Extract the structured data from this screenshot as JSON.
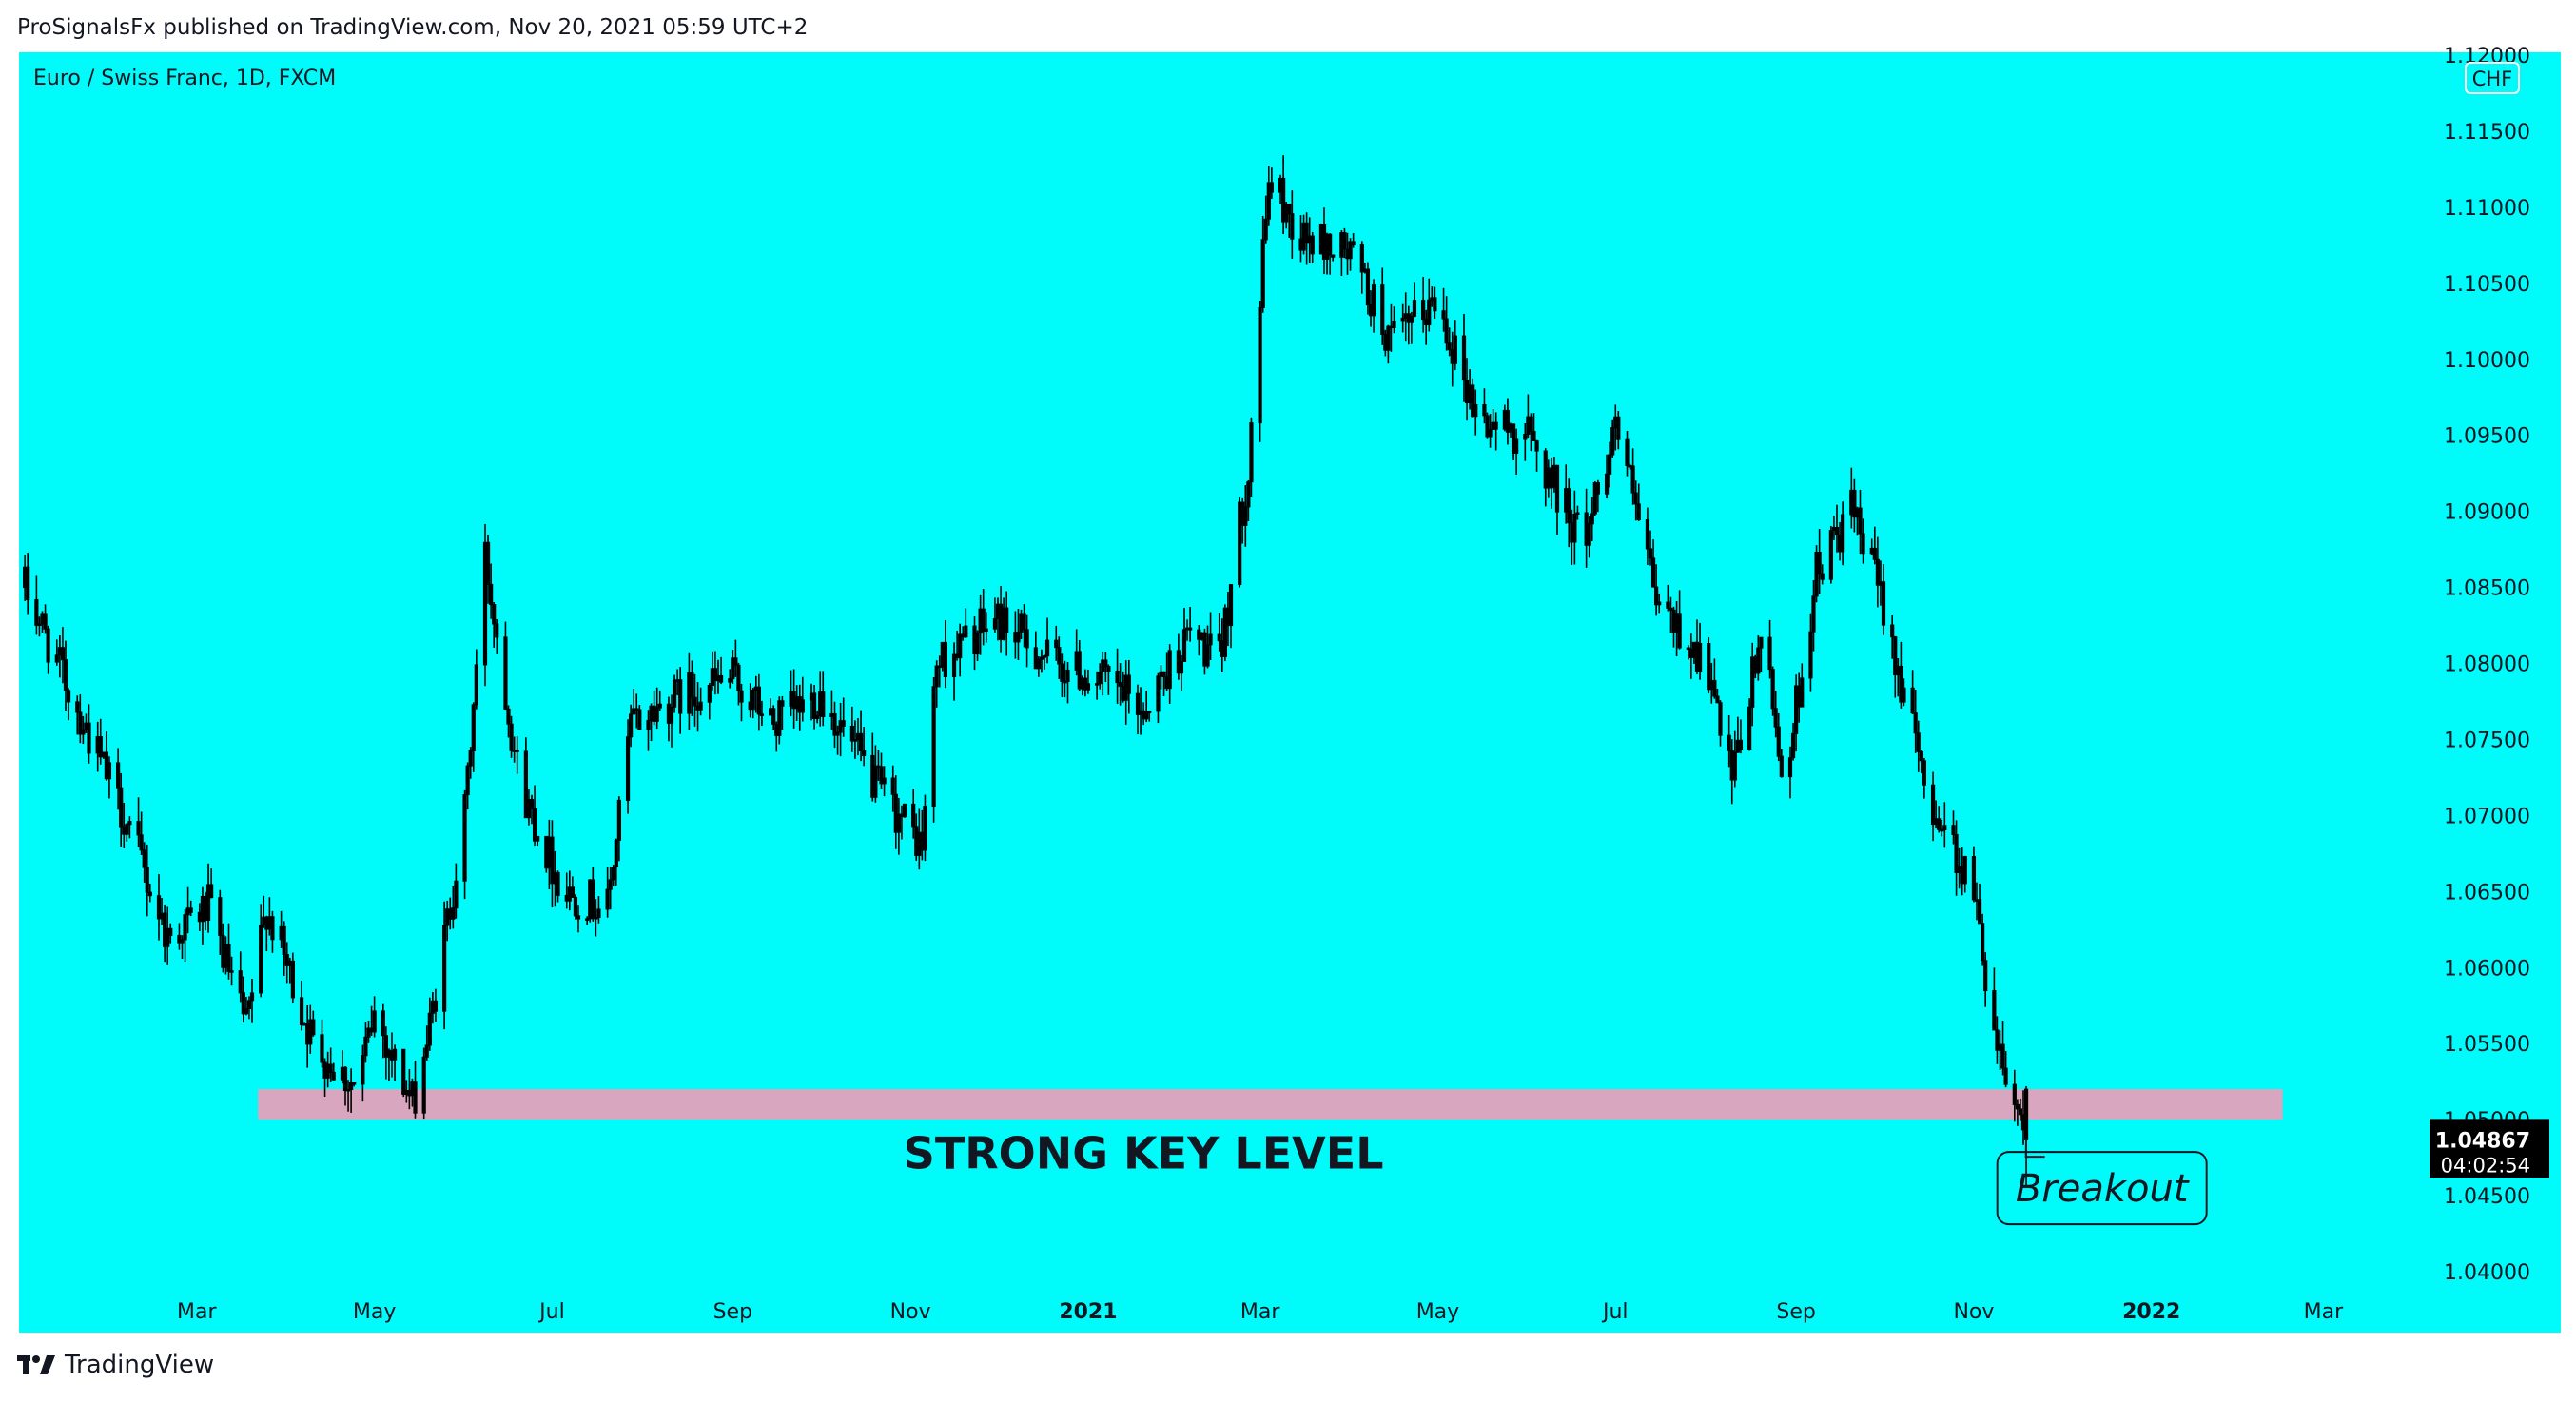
{
  "header": {
    "attribution": "ProSignalsFx published on TradingView.com, Nov 20, 2021 05:59 UTC+2"
  },
  "chart_header": {
    "symbol_line": "Euro / Swiss Franc, 1D, FXCM",
    "currency_badge": "CHF"
  },
  "footer": {
    "brand": "TradingView",
    "logo_icon": "tradingview-logo-icon"
  },
  "colors": {
    "background": "#00fbfb",
    "candles": "#000000",
    "zone": "#d8a7bf",
    "price_label_bg": "#000000"
  },
  "chart_data": {
    "type": "candlestick",
    "title": "",
    "xlabel": "",
    "ylabel": "",
    "ylim": [
      1.04,
      1.12
    ],
    "y_ticks": [
      "1.12000",
      "1.11500",
      "1.11000",
      "1.10500",
      "1.10000",
      "1.09500",
      "1.09000",
      "1.08500",
      "1.08000",
      "1.07500",
      "1.07000",
      "1.06500",
      "1.06000",
      "1.05500",
      "1.05000",
      "1.04500",
      "1.04000"
    ],
    "x_ticks": [
      {
        "label": "Mar",
        "bold": false
      },
      {
        "label": "May",
        "bold": false
      },
      {
        "label": "Jul",
        "bold": false
      },
      {
        "label": "Sep",
        "bold": false
      },
      {
        "label": "Nov",
        "bold": false
      },
      {
        "label": "2021",
        "bold": true
      },
      {
        "label": "Mar",
        "bold": false
      },
      {
        "label": "May",
        "bold": false
      },
      {
        "label": "Jul",
        "bold": false
      },
      {
        "label": "Sep",
        "bold": false
      },
      {
        "label": "Nov",
        "bold": false
      },
      {
        "label": "2022",
        "bold": true
      },
      {
        "label": "Mar",
        "bold": false
      }
    ],
    "grid": false,
    "date_range": [
      "2020-01-02",
      "2021-11-19"
    ],
    "price_path": [
      [
        "2020-01-02",
        1.085
      ],
      [
        "2020-01-20",
        1.077
      ],
      [
        "2020-02-05",
        1.07
      ],
      [
        "2020-02-20",
        1.062
      ],
      [
        "2020-03-05",
        1.064
      ],
      [
        "2020-03-18",
        1.056
      ],
      [
        "2020-03-25",
        1.064
      ],
      [
        "2020-04-10",
        1.055
      ],
      [
        "2020-04-25",
        1.052
      ],
      [
        "2020-05-01",
        1.057
      ],
      [
        "2020-05-14",
        1.051
      ],
      [
        "2020-05-20",
        1.056
      ],
      [
        "2020-06-01",
        1.07
      ],
      [
        "2020-06-08",
        1.087
      ],
      [
        "2020-06-20",
        1.072
      ],
      [
        "2020-07-05",
        1.065
      ],
      [
        "2020-07-20",
        1.064
      ],
      [
        "2020-07-28",
        1.076
      ],
      [
        "2020-08-15",
        1.078
      ],
      [
        "2020-09-01",
        1.079
      ],
      [
        "2020-09-15",
        1.076
      ],
      [
        "2020-10-01",
        1.078
      ],
      [
        "2020-10-20",
        1.072
      ],
      [
        "2020-11-05",
        1.068
      ],
      [
        "2020-11-10",
        1.08
      ],
      [
        "2020-12-01",
        1.083
      ],
      [
        "2020-12-20",
        1.08
      ],
      [
        "2021-01-05",
        1.079
      ],
      [
        "2021-01-20",
        1.077
      ],
      [
        "2021-02-05",
        1.082
      ],
      [
        "2021-02-15",
        1.08
      ],
      [
        "2021-02-25",
        1.093
      ],
      [
        "2021-03-04",
        1.112
      ],
      [
        "2021-03-15",
        1.108
      ],
      [
        "2021-04-01",
        1.107
      ],
      [
        "2021-04-15",
        1.101
      ],
      [
        "2021-05-01",
        1.104
      ],
      [
        "2021-05-15",
        1.096
      ],
      [
        "2021-06-01",
        1.095
      ],
      [
        "2021-06-20",
        1.088
      ],
      [
        "2021-07-01",
        1.096
      ],
      [
        "2021-07-15",
        1.084
      ],
      [
        "2021-08-01",
        1.08
      ],
      [
        "2021-08-10",
        1.072
      ],
      [
        "2021-08-20",
        1.082
      ],
      [
        "2021-08-28",
        1.072
      ],
      [
        "2021-09-08",
        1.086
      ],
      [
        "2021-09-20",
        1.09
      ],
      [
        "2021-10-01",
        1.084
      ],
      [
        "2021-10-15",
        1.072
      ],
      [
        "2021-11-01",
        1.065
      ],
      [
        "2021-11-08",
        1.056
      ],
      [
        "2021-11-19",
        1.049
      ]
    ],
    "last_candle": {
      "date": "2021-11-19",
      "open": 1.052,
      "high": 1.0522,
      "low": 1.0455,
      "close": 1.04867
    },
    "key_level_zone": {
      "from_date": "2020-03-22",
      "to_date": "2022-02-15",
      "low": 1.05,
      "high": 1.052,
      "color": "#d8a7bf"
    },
    "annotations": [
      {
        "text": "STRONG KEY LEVEL",
        "date": "2021-01-20",
        "price": 1.0476
      },
      {
        "text": "Breakout",
        "date": "2021-12-15",
        "price": 1.0455,
        "points_to_date": "2021-11-19",
        "points_to_price": 1.0488
      }
    ],
    "last_price": {
      "value": "1.04867",
      "countdown": "04:02:54"
    }
  }
}
